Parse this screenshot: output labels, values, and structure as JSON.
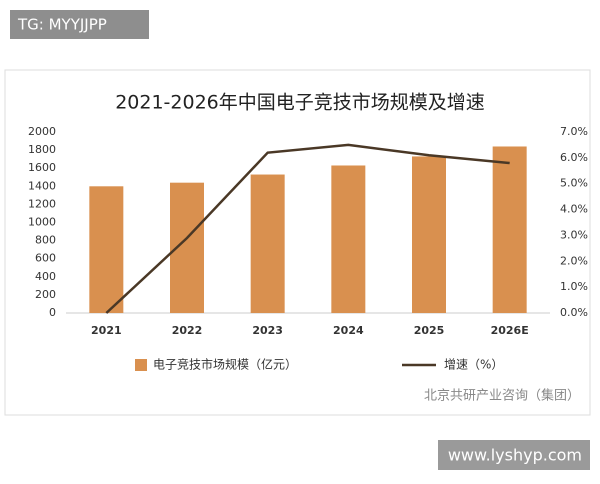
{
  "header": {
    "tag": "TG: MYYJJPP"
  },
  "footer": {
    "site": "www.lyshyp.com"
  },
  "chart_data": {
    "type": "bar_line",
    "title": "2021-2026年中国电子竞技市场规模及增速",
    "source": "北京共研产业咨询（集团）",
    "categories": [
      "2021",
      "2022",
      "2023",
      "2024",
      "2025",
      "2026E"
    ],
    "series": [
      {
        "name": "电子竞技市场规模（亿元）",
        "type": "bar",
        "color": "#d9904f",
        "values": [
          1400,
          1440,
          1530,
          1630,
          1730,
          1840
        ]
      },
      {
        "name": "增速（%）",
        "type": "line",
        "axis": "y2",
        "color": "#4a3826",
        "values": [
          0.0,
          2.9,
          6.2,
          6.5,
          6.1,
          5.8
        ]
      }
    ],
    "ylim": [
      0,
      2000
    ],
    "yticks": [
      0,
      200,
      400,
      600,
      800,
      1000,
      1200,
      1400,
      1600,
      1800,
      2000
    ],
    "y2lim": [
      0,
      7
    ],
    "y2ticks": [
      {
        "value": 0,
        "label": "0.0%"
      },
      {
        "value": 1,
        "label": "1.0%"
      },
      {
        "value": 2,
        "label": "2.0%"
      },
      {
        "value": 3,
        "label": "3.0%"
      },
      {
        "value": 4,
        "label": "4.0%"
      },
      {
        "value": 5,
        "label": "5.0%"
      },
      {
        "value": 6,
        "label": "6.0%"
      },
      {
        "value": 7,
        "label": "7.0%"
      }
    ],
    "grid": false,
    "legend": "bottom"
  }
}
